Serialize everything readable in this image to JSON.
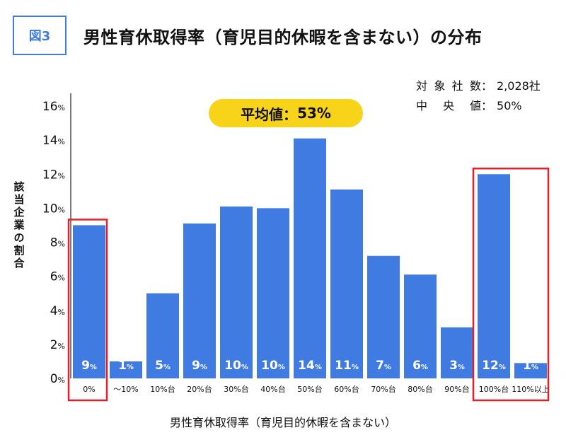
{
  "figure_label": "図3",
  "title": "男性育休取得率（育児目的休暇を含まない）の分布",
  "info": [
    {
      "label": "対象社数",
      "value": "2,028社"
    },
    {
      "label": "中央値",
      "value": "50%"
    }
  ],
  "average": {
    "label": "平均値：",
    "value": "53%"
  },
  "colors": {
    "bar": "#3f7be0",
    "highlight": "#e3202a",
    "pill": "#f7d31a",
    "accent": "#3f7be0"
  },
  "chart_data": {
    "type": "bar",
    "title": "男性育休取得率（育児目的休暇を含まない）の分布",
    "xlabel": "男性育休取得率（育児目的休暇を含まない）",
    "ylabel": "該当企業の割合",
    "categories": [
      "0%",
      "〜10%",
      "10%台",
      "20%台",
      "30%台",
      "40%台",
      "50%台",
      "60%台",
      "70%台",
      "80%台",
      "90%台",
      "100%台",
      "110%以上"
    ],
    "values": [
      9,
      1,
      5,
      9,
      10,
      10,
      14,
      11,
      7,
      6,
      3,
      12,
      1
    ],
    "bar_heights": [
      9.0,
      1.0,
      5.0,
      9.1,
      10.1,
      10.0,
      14.1,
      11.1,
      7.2,
      6.1,
      3.0,
      12.0,
      0.9
    ],
    "data_labels": [
      "9%",
      "1%",
      "5%",
      "9%",
      "10%",
      "10%",
      "14%",
      "11%",
      "7%",
      "6%",
      "3%",
      "12%",
      "1%"
    ],
    "yticks": [
      "0%",
      "2%",
      "4%",
      "6%",
      "8%",
      "10%",
      "12%",
      "14%",
      "16%"
    ],
    "ylim": [
      0,
      16
    ],
    "grid": false,
    "highlighted_categories": [
      "0%",
      "100%台",
      "110%以上"
    ]
  }
}
